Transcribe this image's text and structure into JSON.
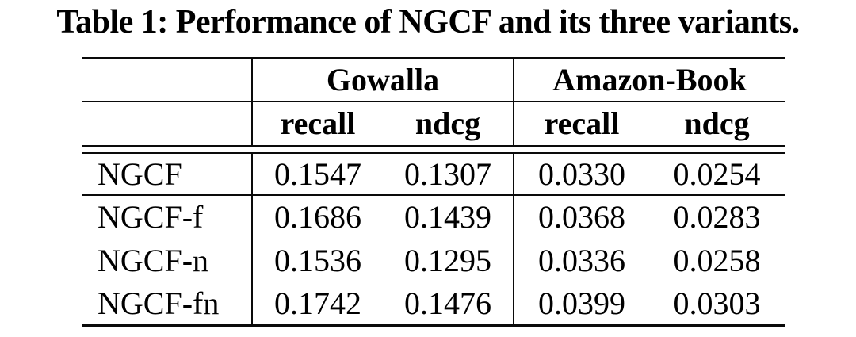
{
  "title": "Table 1: Performance of NGCF and its three variants.",
  "table": {
    "corner_label": "",
    "col_groups": [
      {
        "label": "Gowalla",
        "sub": [
          "recall",
          "ndcg"
        ]
      },
      {
        "label": "Amazon-Book",
        "sub": [
          "recall",
          "ndcg"
        ]
      }
    ],
    "rows": [
      {
        "label": "NGCF",
        "values": [
          "0.1547",
          "0.1307",
          "0.0330",
          "0.0254"
        ]
      },
      {
        "label": "NGCF-f",
        "values": [
          "0.1686",
          "0.1439",
          "0.0368",
          "0.0283"
        ]
      },
      {
        "label": "NGCF-n",
        "values": [
          "0.1536",
          "0.1295",
          "0.0336",
          "0.0258"
        ]
      },
      {
        "label": "NGCF-fn",
        "values": [
          "0.1742",
          "0.1476",
          "0.0399",
          "0.0303"
        ]
      }
    ]
  },
  "colors": {
    "background": "#ffffff",
    "text": "#000000",
    "rule": "#0a0a0a"
  }
}
